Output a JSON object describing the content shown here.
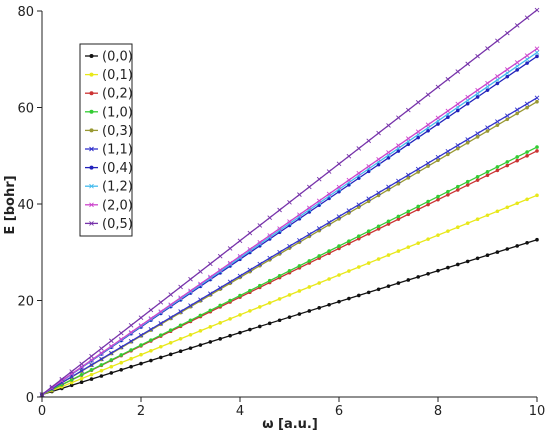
{
  "chart_data": {
    "type": "line",
    "xlabel": "ω [a.u.]",
    "ylabel": "E [bohr]",
    "xlim": [
      0,
      10
    ],
    "ylim": [
      0,
      80
    ],
    "xticks": [
      0,
      2,
      4,
      6,
      8,
      10
    ],
    "yticks": [
      0,
      20,
      40,
      60,
      80
    ],
    "x": [
      0,
      10
    ],
    "legend_position": "top-left",
    "grid": false,
    "series": [
      {
        "name": "(0,0)",
        "color": "#111111",
        "marker": "dot",
        "values": [
          0.5,
          32.6
        ]
      },
      {
        "name": "(0,1)",
        "color": "#e8e81a",
        "marker": "dot",
        "values": [
          0.5,
          41.8
        ]
      },
      {
        "name": "(0,2)",
        "color": "#cc3333",
        "marker": "dot",
        "values": [
          0.5,
          51.0
        ]
      },
      {
        "name": "(1,0)",
        "color": "#33cc33",
        "marker": "dot",
        "values": [
          0.5,
          51.8
        ]
      },
      {
        "name": "(0,3)",
        "color": "#999933",
        "marker": "dot",
        "values": [
          0.5,
          61.2
        ]
      },
      {
        "name": "(1,1)",
        "color": "#3333cc",
        "marker": "cross",
        "values": [
          0.5,
          62.0
        ]
      },
      {
        "name": "(0,4)",
        "color": "#2222bb",
        "marker": "dot",
        "values": [
          0.5,
          70.6
        ]
      },
      {
        "name": "(1,2)",
        "color": "#44bbee",
        "marker": "cross",
        "values": [
          0.5,
          71.4
        ]
      },
      {
        "name": "(2,0)",
        "color": "#cc44cc",
        "marker": "cross",
        "values": [
          0.5,
          72.2
        ]
      },
      {
        "name": "(0,5)",
        "color": "#7733aa",
        "marker": "cross",
        "values": [
          0.5,
          80.2
        ]
      }
    ]
  }
}
